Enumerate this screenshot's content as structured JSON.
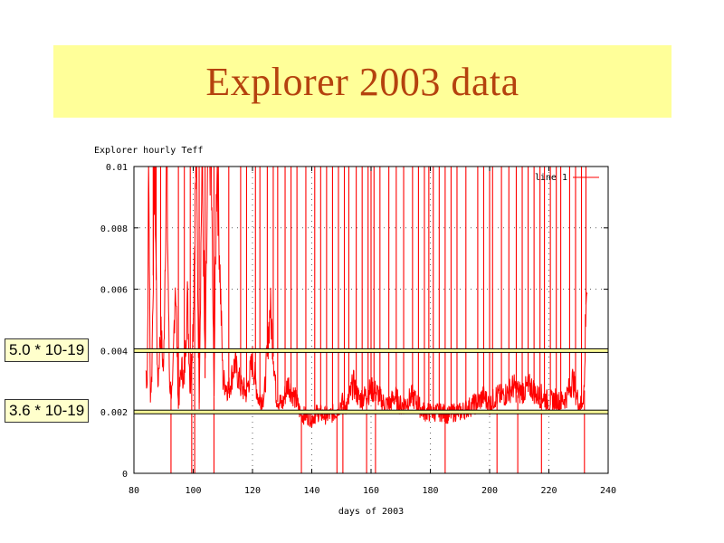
{
  "slide": {
    "title": "Explorer 2003 data"
  },
  "annotations": {
    "upper_label": "5.0 * 10-19",
    "lower_label": "3.6 * 10-19",
    "upper_level": 0.004,
    "lower_level": 0.002
  },
  "colors": {
    "banner": "#ffff99",
    "title": "#b5420e",
    "series": "#ff0000",
    "label_bg": "#ffffcc"
  },
  "chart_data": {
    "type": "line",
    "title": "Explorer hourly Teff",
    "xlabel": "days of 2003",
    "ylabel": "",
    "xlim": [
      80,
      240
    ],
    "ylim": [
      0,
      0.01
    ],
    "x_ticks": [
      "80",
      "100",
      "120",
      "140",
      "160",
      "180",
      "200",
      "220",
      "240"
    ],
    "y_ticks": [
      "0",
      "0.002",
      "0.004",
      "0.006",
      "0.008",
      "0.01"
    ],
    "grid": "dotted",
    "legend_position": "top-right",
    "series": [
      {
        "name": "line 1",
        "x": [
          84,
          84.5,
          85,
          85.5,
          86,
          87,
          88,
          89,
          90,
          91,
          92,
          93,
          94,
          95,
          96,
          97,
          98,
          99,
          100,
          101,
          102,
          103,
          104,
          105,
          106,
          107,
          108,
          110,
          112,
          114,
          116,
          118,
          120,
          122,
          124,
          126,
          128,
          130,
          132,
          134,
          135,
          136,
          137,
          138,
          140,
          142,
          144,
          146,
          148,
          150,
          152,
          154,
          156,
          158,
          160,
          162,
          164,
          166,
          168,
          170,
          172,
          174,
          176,
          178,
          180,
          182,
          184,
          186,
          188,
          190,
          192,
          194,
          196,
          198,
          200,
          202,
          204,
          206,
          208,
          210,
          212,
          214,
          216,
          218,
          220,
          222,
          224,
          226,
          228,
          230,
          231,
          232,
          232.5,
          233
        ],
        "y": [
          0.0032,
          0.0028,
          0.01,
          0.0025,
          0.0029,
          0.01,
          0.0026,
          0.0045,
          0.0031,
          0.01,
          0.0028,
          0.0024,
          0.0062,
          0.0021,
          0.0033,
          0.0029,
          0.0055,
          0.0026,
          0.0048,
          0.01,
          0.0023,
          0.01,
          0.0031,
          0.01,
          0.01,
          0.0025,
          0.01,
          0.0029,
          0.0026,
          0.0034,
          0.0027,
          0.0025,
          0.0035,
          0.0023,
          0.0024,
          0.0052,
          0.0024,
          0.0021,
          0.0028,
          0.0024,
          0.0022,
          0.0019,
          0.0018,
          0.0018,
          0.0017,
          0.0019,
          0.0018,
          0.0018,
          0.0019,
          0.0022,
          0.0021,
          0.0028,
          0.0023,
          0.0024,
          0.0026,
          0.0025,
          0.0022,
          0.0021,
          0.0024,
          0.0021,
          0.0022,
          0.0024,
          0.0021,
          0.0019,
          0.0019,
          0.0019,
          0.0019,
          0.0018,
          0.0019,
          0.0019,
          0.002,
          0.0021,
          0.0022,
          0.0024,
          0.0021,
          0.0024,
          0.0024,
          0.0025,
          0.0027,
          0.0025,
          0.0026,
          0.0027,
          0.0024,
          0.0024,
          0.0022,
          0.0023,
          0.0022,
          0.0024,
          0.0029,
          0.0022,
          0.0021,
          0.0027,
          0.0055,
          0.0058
        ],
        "spikes_high": [
          85,
          86.5,
          87.5,
          89,
          91,
          95,
          97,
          99,
          101,
          102,
          103,
          104,
          105,
          106,
          107,
          108,
          112,
          116,
          118,
          121,
          122.5,
          125,
          127,
          128.5,
          131,
          133,
          135,
          138,
          141,
          143,
          145,
          147,
          149,
          151,
          152.5,
          155,
          157,
          159,
          160,
          161,
          163,
          166,
          168.5,
          171,
          174,
          176,
          178,
          179.5,
          181,
          183,
          185,
          187,
          189,
          192,
          196,
          198,
          200,
          201,
          204,
          206.5,
          209,
          211,
          213,
          215,
          217,
          218.5,
          220.5,
          222.5,
          224,
          227,
          229,
          231,
          232.5
        ],
        "spikes_low": [
          92.5,
          99.5,
          100.5,
          107,
          136.5,
          148.5,
          150.5,
          158.5,
          161.5,
          185,
          202.5,
          209.5,
          217.5,
          232
        ]
      }
    ]
  }
}
